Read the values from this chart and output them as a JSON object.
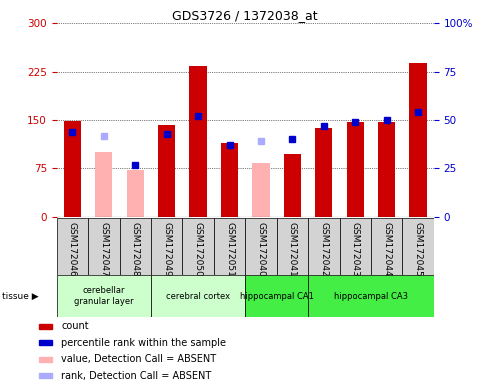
{
  "title": "GDS3726 / 1372038_at",
  "samples": [
    "GSM172046",
    "GSM172047",
    "GSM172048",
    "GSM172049",
    "GSM172050",
    "GSM172051",
    "GSM172040",
    "GSM172041",
    "GSM172042",
    "GSM172043",
    "GSM172044",
    "GSM172045"
  ],
  "count_values": [
    148,
    0,
    0,
    143,
    233,
    115,
    0,
    97,
    138,
    147,
    147,
    238
  ],
  "absent_value_values": [
    0,
    100,
    73,
    0,
    0,
    0,
    83,
    0,
    0,
    0,
    0,
    0
  ],
  "percentile_rank": [
    44,
    0,
    27,
    43,
    52,
    37,
    0,
    40,
    47,
    49,
    50,
    54
  ],
  "absent_rank_values": [
    0,
    42,
    0,
    0,
    0,
    0,
    39,
    0,
    0,
    0,
    0,
    0
  ],
  "tissue_ranges": [
    {
      "label": "cerebellar\ngranular layer",
      "start": 0,
      "end": 2,
      "color": "#ccffcc"
    },
    {
      "label": "cerebral cortex",
      "start": 3,
      "end": 5,
      "color": "#ccffcc"
    },
    {
      "label": "hippocampal CA1",
      "start": 6,
      "end": 7,
      "color": "#44ee44"
    },
    {
      "label": "hippocampal CA3",
      "start": 8,
      "end": 11,
      "color": "#44ee44"
    }
  ],
  "ylim_left": [
    0,
    300
  ],
  "ylim_right": [
    0,
    100
  ],
  "yticks_left": [
    0,
    75,
    150,
    225,
    300
  ],
  "yticks_right": [
    0,
    25,
    50,
    75,
    100
  ],
  "count_color": "#cc0000",
  "absent_value_color": "#ffb0b0",
  "rank_color": "#0000cc",
  "absent_rank_color": "#aaaaff",
  "legend_items": [
    {
      "label": "count",
      "color": "#cc0000"
    },
    {
      "label": "percentile rank within the sample",
      "color": "#0000cc"
    },
    {
      "label": "value, Detection Call = ABSENT",
      "color": "#ffb0b0"
    },
    {
      "label": "rank, Detection Call = ABSENT",
      "color": "#aaaaff"
    }
  ],
  "sample_box_color": "#d3d3d3",
  "title_fontsize": 9,
  "tick_fontsize": 7.5,
  "label_fontsize": 6.5,
  "legend_fontsize": 7
}
